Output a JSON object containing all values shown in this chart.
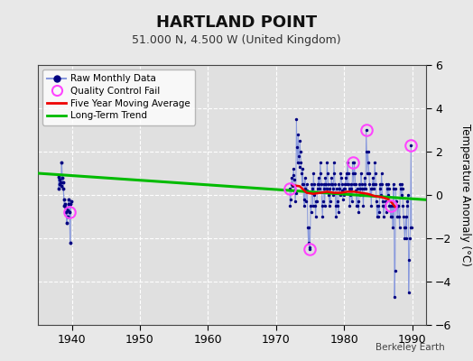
{
  "title": "HARTLAND POINT",
  "subtitle": "51.000 N, 4.500 W (United Kingdom)",
  "ylabel": "Temperature Anomaly (°C)",
  "credit": "Berkeley Earth",
  "xlim": [
    1935,
    1992
  ],
  "ylim": [
    -6,
    6
  ],
  "yticks": [
    -6,
    -4,
    -2,
    0,
    2,
    4,
    6
  ],
  "xticks": [
    1940,
    1950,
    1960,
    1970,
    1980,
    1990
  ],
  "fig_bg": "#e8e8e8",
  "plot_bg": "#e0e0e0",
  "grid_color": "#ffffff",
  "early_t": [
    1938.0,
    1938.083,
    1938.167,
    1938.25,
    1938.333,
    1938.417,
    1938.5,
    1938.583,
    1938.667,
    1938.75,
    1938.833,
    1938.917,
    1939.0,
    1939.083,
    1939.167,
    1939.25,
    1939.333,
    1939.417,
    1939.5,
    1939.583,
    1939.667,
    1939.75,
    1939.833,
    1939.917
  ],
  "early_v": [
    0.85,
    0.3,
    0.5,
    0.7,
    0.6,
    0.4,
    1.5,
    0.8,
    0.6,
    0.3,
    -0.2,
    -0.5,
    -0.4,
    -0.6,
    -0.8,
    -1.3,
    -1.0,
    -0.7,
    -0.4,
    -0.2,
    -0.8,
    -2.2,
    -0.4,
    -0.3
  ],
  "early_qc_t": [
    1939.667
  ],
  "early_qc_v": [
    -0.8
  ],
  "dense_t": [
    1972.0,
    1972.083,
    1972.167,
    1972.25,
    1972.333,
    1972.417,
    1972.5,
    1972.583,
    1972.667,
    1972.75,
    1972.833,
    1972.917,
    1973.0,
    1973.083,
    1973.167,
    1973.25,
    1973.333,
    1973.417,
    1973.5,
    1973.583,
    1973.667,
    1973.75,
    1973.833,
    1973.917,
    1974.0,
    1974.083,
    1974.167,
    1974.25,
    1974.333,
    1974.417,
    1974.5,
    1974.583,
    1974.667,
    1974.75,
    1974.833,
    1974.917,
    1975.0,
    1975.083,
    1975.167,
    1975.25,
    1975.333,
    1975.417,
    1975.5,
    1975.583,
    1975.667,
    1975.75,
    1975.833,
    1975.917,
    1976.0,
    1976.083,
    1976.167,
    1976.25,
    1976.333,
    1976.417,
    1976.5,
    1976.583,
    1976.667,
    1976.75,
    1976.833,
    1976.917,
    1977.0,
    1977.083,
    1977.167,
    1977.25,
    1977.333,
    1977.417,
    1977.5,
    1977.583,
    1977.667,
    1977.75,
    1977.833,
    1977.917,
    1978.0,
    1978.083,
    1978.167,
    1978.25,
    1978.333,
    1978.417,
    1978.5,
    1978.583,
    1978.667,
    1978.75,
    1978.833,
    1978.917,
    1979.0,
    1979.083,
    1979.167,
    1979.25,
    1979.333,
    1979.417,
    1979.5,
    1979.583,
    1979.667,
    1979.75,
    1979.833,
    1979.917,
    1980.0,
    1980.083,
    1980.167,
    1980.25,
    1980.333,
    1980.417,
    1980.5,
    1980.583,
    1980.667,
    1980.75,
    1980.833,
    1980.917,
    1981.0,
    1981.083,
    1981.167,
    1981.25,
    1981.333,
    1981.417,
    1981.5,
    1981.583,
    1981.667,
    1981.75,
    1981.833,
    1981.917,
    1982.0,
    1982.083,
    1982.167,
    1982.25,
    1982.333,
    1982.417,
    1982.5,
    1982.583,
    1982.667,
    1982.75,
    1982.833,
    1982.917,
    1983.0,
    1983.083,
    1983.167,
    1983.25,
    1983.333,
    1983.417,
    1983.5,
    1983.583,
    1983.667,
    1983.75,
    1983.833,
    1983.917,
    1984.0,
    1984.083,
    1984.167,
    1984.25,
    1984.333,
    1984.417,
    1984.5,
    1984.583,
    1984.667,
    1984.75,
    1984.833,
    1984.917,
    1985.0,
    1985.083,
    1985.167,
    1985.25,
    1985.333,
    1985.417,
    1985.5,
    1985.583,
    1985.667,
    1985.75,
    1985.833,
    1985.917,
    1986.0,
    1986.083,
    1986.167,
    1986.25,
    1986.333,
    1986.417,
    1986.5,
    1986.583,
    1986.667,
    1986.75,
    1986.833,
    1986.917,
    1987.0,
    1987.083,
    1987.167,
    1987.25,
    1987.333,
    1987.417,
    1987.5,
    1987.583,
    1987.667,
    1987.75,
    1987.833,
    1987.917,
    1988.0,
    1988.083,
    1988.167,
    1988.25,
    1988.333,
    1988.417,
    1988.5,
    1988.583,
    1988.667,
    1988.75,
    1988.833,
    1988.917,
    1989.0,
    1989.083,
    1989.167,
    1989.25,
    1989.333,
    1989.417,
    1989.5,
    1989.583,
    1989.667,
    1989.75,
    1989.833,
    1989.917
  ],
  "dense_v": [
    0.3,
    -0.5,
    -0.2,
    0.5,
    0.8,
    0.4,
    0.9,
    1.2,
    0.7,
    0.2,
    -0.3,
    0.1,
    3.5,
    2.2,
    1.5,
    2.8,
    1.8,
    1.3,
    2.5,
    2.0,
    1.5,
    1.0,
    0.5,
    1.2,
    0.5,
    -0.2,
    -0.5,
    0.8,
    0.3,
    -0.3,
    0.5,
    0.2,
    -1.5,
    -2.2,
    -1.5,
    -2.4,
    -2.5,
    -0.5,
    -0.8,
    0.5,
    0.3,
    -0.5,
    1.0,
    0.5,
    0.0,
    -0.5,
    -1.0,
    -0.3,
    -0.3,
    0.3,
    0.5,
    0.8,
    0.5,
    0.3,
    1.5,
    1.0,
    0.5,
    -0.5,
    -1.0,
    -0.3,
    0.5,
    0.3,
    -0.5,
    0.8,
    0.5,
    0.3,
    1.5,
    1.0,
    0.5,
    0.0,
    -0.5,
    0.3,
    -0.3,
    0.5,
    0.8,
    0.5,
    0.3,
    0.0,
    1.5,
    1.0,
    0.5,
    -0.5,
    -1.0,
    0.3,
    -0.5,
    -0.3,
    -0.8,
    0.5,
    0.3,
    0.0,
    1.0,
    0.8,
    0.5,
    0.2,
    -0.2,
    0.3,
    0.0,
    0.3,
    0.5,
    0.8,
    1.0,
    0.5,
    1.5,
    1.0,
    0.5,
    0.3,
    -0.5,
    0.0,
    0.5,
    0.3,
    -0.3,
    1.5,
    1.0,
    0.5,
    1.5,
    1.0,
    0.5,
    0.2,
    -0.5,
    0.3,
    -0.5,
    -0.3,
    -0.8,
    0.5,
    0.3,
    0.0,
    1.0,
    0.5,
    0.3,
    0.0,
    -0.5,
    0.3,
    0.8,
    0.5,
    0.3,
    3.0,
    2.0,
    1.0,
    2.0,
    1.5,
    1.0,
    0.5,
    0.0,
    0.3,
    -0.5,
    0.3,
    0.5,
    0.8,
    0.5,
    0.3,
    1.5,
    1.0,
    0.5,
    -0.3,
    -1.0,
    -0.5,
    -1.0,
    -0.5,
    -0.8,
    0.5,
    0.3,
    0.0,
    1.0,
    0.5,
    -0.3,
    -0.5,
    -1.0,
    -0.5,
    -0.5,
    -0.3,
    -0.8,
    0.5,
    0.3,
    0.0,
    0.5,
    0.3,
    -0.5,
    -0.5,
    -1.0,
    -0.5,
    -1.0,
    -0.5,
    -1.5,
    0.5,
    0.3,
    -4.7,
    -3.5,
    0.3,
    -0.3,
    -0.5,
    -1.0,
    -0.5,
    -0.5,
    -1.0,
    -1.5,
    0.5,
    0.3,
    0.0,
    0.5,
    0.3,
    -0.5,
    -1.0,
    -1.5,
    -2.0,
    -1.5,
    -1.0,
    -2.0,
    -0.5,
    -0.3,
    0.0,
    -4.5,
    -3.0,
    -2.0,
    -1.5,
    2.3,
    -1.5
  ],
  "dense_qc_t": [
    1972.0,
    1975.0,
    1981.25,
    1983.25,
    1986.917,
    1989.833
  ],
  "dense_qc_v": [
    0.3,
    -2.5,
    1.5,
    3.0,
    -0.5,
    2.3
  ],
  "trend_x": [
    1935,
    1992
  ],
  "trend_y": [
    1.0,
    -0.22
  ],
  "ma_x": [
    1972.5,
    1973.5,
    1974.5,
    1975.5,
    1976.5,
    1977.5,
    1978.5,
    1979.5,
    1980.5,
    1981.5,
    1982.5,
    1983.5,
    1984.5,
    1985.5,
    1986.0,
    1986.5,
    1987.0,
    1987.5
  ],
  "ma_y": [
    0.45,
    0.4,
    0.1,
    0.05,
    0.1,
    0.15,
    0.1,
    0.1,
    0.15,
    0.15,
    0.1,
    0.05,
    -0.05,
    -0.1,
    -0.15,
    -0.2,
    -0.35,
    -0.55
  ],
  "colors": {
    "raw_line": "#8899dd",
    "raw_dot": "#000080",
    "qc_circle": "#ff44ff",
    "moving_avg": "#ee0000",
    "trend": "#00bb00"
  }
}
